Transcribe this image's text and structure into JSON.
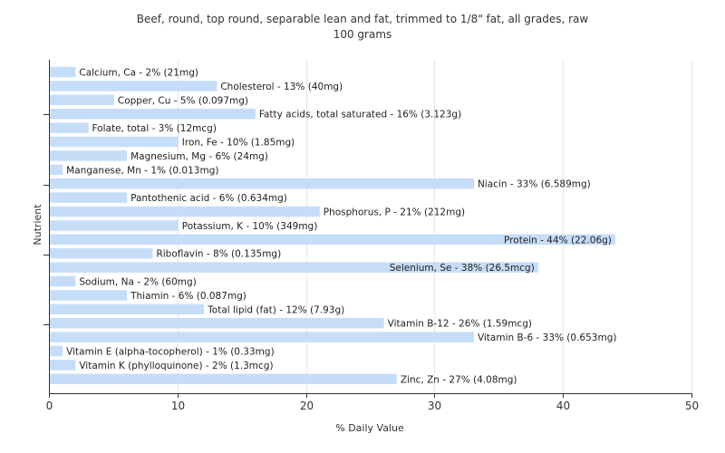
{
  "chart_data": {
    "type": "bar",
    "orientation": "horizontal",
    "title": "Beef, round, top round, separable lean and fat, trimmed to 1/8\" fat, all grades, raw",
    "subtitle": "100 grams",
    "xlabel": "% Daily Value",
    "ylabel": "Nutrient",
    "xlim": [
      0,
      50
    ],
    "x_ticks": [
      0,
      10,
      20,
      30,
      40,
      50
    ],
    "grid": true,
    "bar_color": "#c6ddf7",
    "categories": [
      "Calcium, Ca",
      "Cholesterol",
      "Copper, Cu",
      "Fatty acids, total saturated",
      "Folate, total",
      "Iron, Fe",
      "Magnesium, Mg",
      "Manganese, Mn",
      "Niacin",
      "Pantothenic acid",
      "Phosphorus, P",
      "Potassium, K",
      "Protein",
      "Riboflavin",
      "Selenium, Se",
      "Sodium, Na",
      "Thiamin",
      "Total lipid (fat)",
      "Vitamin B-12",
      "Vitamin B-6",
      "Vitamin E (alpha-tocopherol)",
      "Vitamin K (phylloquinone)",
      "Zinc, Zn"
    ],
    "values": [
      2,
      13,
      5,
      16,
      3,
      10,
      6,
      1,
      33,
      6,
      21,
      10,
      44,
      8,
      38,
      2,
      6,
      12,
      26,
      33,
      1,
      2,
      27
    ],
    "labels": [
      "Calcium, Ca - 2% (21mg)",
      "Cholesterol - 13% (40mg)",
      "Copper, Cu - 5% (0.097mg)",
      "Fatty acids, total saturated - 16% (3.123g)",
      "Folate, total - 3% (12mcg)",
      "Iron, Fe - 10% (1.85mg)",
      "Magnesium, Mg - 6% (24mg)",
      "Manganese, Mn - 1% (0.013mg)",
      "Niacin - 33% (6.589mg)",
      "Pantothenic acid - 6% (0.634mg)",
      "Phosphorus, P - 21% (212mg)",
      "Potassium, K - 10% (349mg)",
      "Protein - 44% (22.06g)",
      "Riboflavin - 8% (0.135mg)",
      "Selenium, Se - 38% (26.5mcg)",
      "Sodium, Na - 2% (60mg)",
      "Thiamin - 6% (0.087mg)",
      "Total lipid (fat) - 12% (7.93g)",
      "Vitamin B-12 - 26% (1.59mcg)",
      "Vitamin B-6 - 33% (0.653mg)",
      "Vitamin E (alpha-tocopherol) - 1% (0.33mg)",
      "Vitamin K (phylloquinone) - 2% (1.3mcg)",
      "Zinc, Zn - 27% (4.08mg)"
    ]
  }
}
